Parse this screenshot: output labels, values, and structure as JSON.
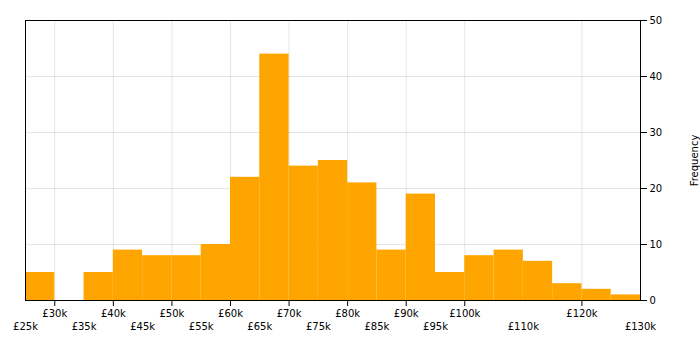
{
  "chart_data": {
    "type": "histogram",
    "bins": [
      25000,
      30000,
      35000,
      40000,
      45000,
      50000,
      55000,
      60000,
      65000,
      70000,
      75000,
      80000,
      85000,
      90000,
      95000,
      100000,
      105000,
      110000,
      115000,
      120000,
      125000,
      130000
    ],
    "values": [
      5,
      0,
      5,
      9,
      8,
      8,
      10,
      22,
      44,
      24,
      25,
      21,
      9,
      19,
      5,
      8,
      9,
      7,
      3,
      2,
      1
    ],
    "color": "#FFA500",
    "ylabel": "Frequency",
    "xlim": [
      25000,
      130000
    ],
    "ylim": [
      0,
      50
    ],
    "xticks": [
      {
        "value": 30000,
        "label": "£30k"
      },
      {
        "value": 40000,
        "label": "£40k"
      },
      {
        "value": 50000,
        "label": "£50k"
      },
      {
        "value": 60000,
        "label": "£60k"
      },
      {
        "value": 70000,
        "label": "£70k"
      },
      {
        "value": 80000,
        "label": "£80k"
      },
      {
        "value": 90000,
        "label": "£90k"
      },
      {
        "value": 100000,
        "label": "£100k"
      },
      {
        "value": 120000,
        "label": "£120k"
      },
      {
        "value": 25000,
        "label": "£25k"
      },
      {
        "value": 35000,
        "label": "£35k"
      },
      {
        "value": 45000,
        "label": "£45k"
      },
      {
        "value": 55000,
        "label": "£55k"
      },
      {
        "value": 65000,
        "label": "£65k"
      },
      {
        "value": 75000,
        "label": "£75k"
      },
      {
        "value": 85000,
        "label": "£85k"
      },
      {
        "value": 95000,
        "label": "£95k"
      },
      {
        "value": 110000,
        "label": "£110k"
      },
      {
        "value": 130000,
        "label": "£130k"
      }
    ],
    "yticks": [
      0,
      10,
      20,
      30,
      40,
      50
    ],
    "grid": true
  }
}
